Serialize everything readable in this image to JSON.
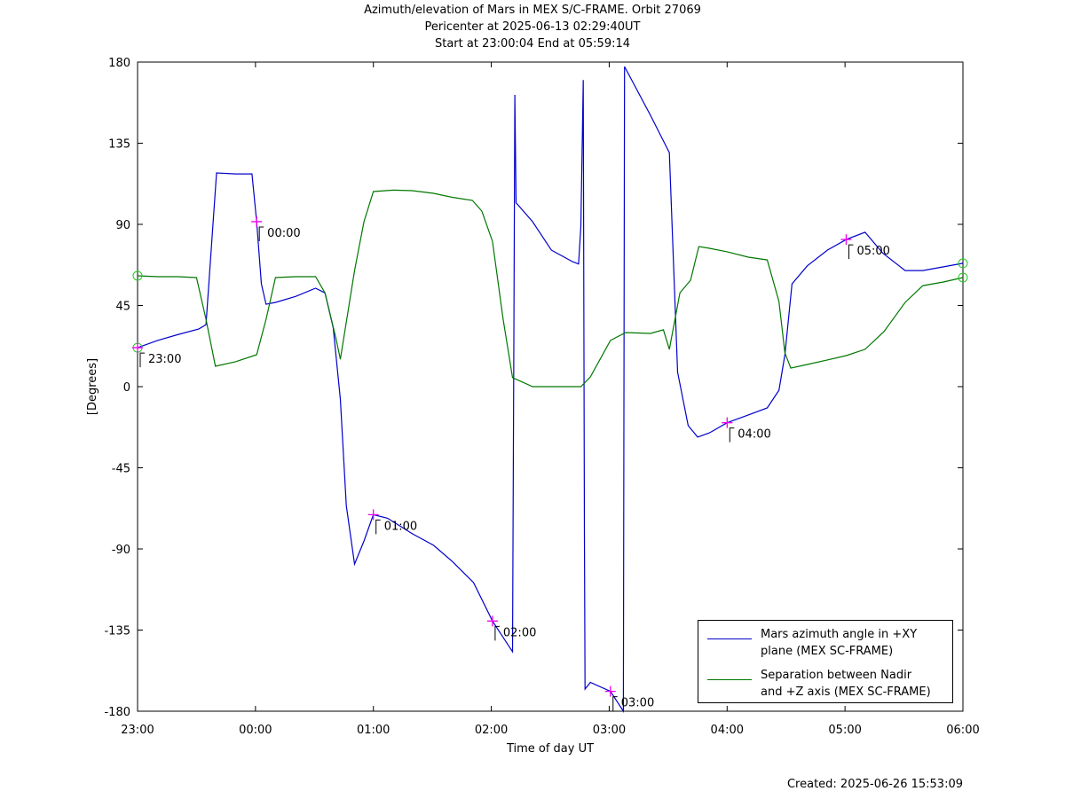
{
  "chart_data": {
    "type": "line",
    "title": "Azimuth/elevation of Mars in MEX S/C-FRAME.  Orbit 27069",
    "subtitle": [
      "Pericenter at 2025-06-13 02:29:40UT",
      "Start at 23:00:04 End at 05:59:14"
    ],
    "xlabel": "Time of day UT",
    "ylabel": "[Degrees]",
    "note": "Created: 2025-06-26 15:53:09",
    "xlim": [
      23,
      30
    ],
    "ylim": [
      -180,
      180
    ],
    "xticks": [
      {
        "value": 23,
        "label": "23:00"
      },
      {
        "value": 24,
        "label": "00:00"
      },
      {
        "value": 25,
        "label": "01:00"
      },
      {
        "value": 26,
        "label": "02:00"
      },
      {
        "value": 27,
        "label": "03:00"
      },
      {
        "value": 28,
        "label": "04:00"
      },
      {
        "value": 29,
        "label": "05:00"
      },
      {
        "value": 30,
        "label": "06:00"
      }
    ],
    "yticks": [
      -180,
      -135,
      -90,
      -45,
      0,
      45,
      90,
      135,
      180
    ],
    "legend": "lower right",
    "series": [
      {
        "name": "Mars azimuth angle in +XY\nplane (MEX SC-FRAME)",
        "color": "#0000cc",
        "x": [
          23.0,
          23.17,
          23.35,
          23.52,
          23.58,
          23.67,
          23.83,
          23.97,
          24.01,
          24.05,
          24.09,
          24.17,
          24.34,
          24.51,
          24.59,
          24.66,
          24.72,
          24.77,
          24.84,
          24.92,
          25.0,
          25.12,
          25.33,
          25.51,
          25.67,
          25.85,
          26.01,
          26.18,
          26.19,
          26.2,
          26.21,
          26.35,
          26.51,
          26.69,
          26.74,
          26.76,
          26.78,
          26.79,
          26.795,
          26.84,
          27.01,
          27.12,
          27.13,
          27.17,
          27.35,
          27.51,
          27.58,
          27.67,
          27.75,
          27.85,
          28.0,
          28.18,
          28.34,
          28.44,
          28.49,
          28.55,
          28.68,
          28.85,
          29.01,
          29.17,
          29.32,
          29.51,
          29.66,
          29.83,
          30.0
        ],
        "values": [
          21.6,
          25.6,
          29,
          32,
          34.4,
          118.5,
          118,
          118,
          91.5,
          57,
          45.7,
          46.7,
          50,
          54.6,
          52,
          32.5,
          -7,
          -66,
          -98.4,
          -85.6,
          -71,
          -73,
          -81.6,
          -88,
          -97,
          -108.7,
          -130,
          -147,
          3,
          161.8,
          102,
          91.5,
          75.7,
          69.3,
          68,
          89,
          170,
          -80.7,
          -167.7,
          -164,
          -169,
          -180,
          177.5,
          172.6,
          150.5,
          129.8,
          8,
          -21.6,
          -28,
          -25.6,
          -20,
          -15.7,
          -11.8,
          -2,
          17.7,
          57,
          67,
          75.7,
          81.6,
          85.6,
          74,
          64.4,
          64.4,
          66.4,
          68.4
        ]
      },
      {
        "name": "Separation between Nadir\nand +Z axis (MEX SC-FRAME)",
        "color": "#007700",
        "x": [
          23.0,
          23.17,
          23.34,
          23.5,
          23.58,
          23.66,
          23.83,
          24.01,
          24.09,
          24.17,
          24.34,
          24.51,
          24.59,
          24.68,
          24.72,
          24.84,
          24.92,
          25.0,
          25.17,
          25.33,
          25.51,
          25.67,
          25.84,
          25.92,
          26.01,
          26.1,
          26.18,
          26.35,
          26.51,
          26.76,
          26.84,
          27.01,
          27.14,
          27.35,
          27.46,
          27.51,
          27.6,
          27.69,
          27.76,
          27.85,
          28.0,
          28.18,
          28.34,
          28.44,
          28.49,
          28.54,
          28.68,
          28.85,
          29.01,
          29.17,
          29.33,
          29.51,
          29.66,
          29.83,
          30.0
        ],
        "values": [
          61.5,
          61,
          61,
          60.5,
          37.4,
          11.3,
          13.8,
          17.7,
          37.4,
          60.5,
          61,
          61,
          52,
          27.5,
          15.2,
          64.4,
          91.5,
          108.2,
          109,
          108.7,
          107.2,
          105,
          103.3,
          97.4,
          80.6,
          37.4,
          5,
          0,
          0,
          0,
          5.4,
          25.6,
          30,
          29.5,
          31.5,
          20.7,
          52,
          59,
          77.7,
          76.7,
          74.8,
          71.8,
          70.3,
          47.2,
          18.7,
          10.3,
          12.3,
          14.8,
          17.2,
          20.7,
          30.5,
          46.7,
          56,
          58,
          60.5
        ]
      }
    ],
    "annotations": [
      {
        "text": "23:00",
        "x": 23.0,
        "y": 21.6
      },
      {
        "text": "00:00",
        "x": 24.01,
        "y": 91.5
      },
      {
        "text": "01:00",
        "x": 25.0,
        "y": -71
      },
      {
        "text": "02:00",
        "x": 26.01,
        "y": -130
      },
      {
        "text": "03:00",
        "x": 27.01,
        "y": -169
      },
      {
        "text": "04:00",
        "x": 28.0,
        "y": -20
      },
      {
        "text": "05:00",
        "x": 29.01,
        "y": 81.6
      }
    ]
  }
}
